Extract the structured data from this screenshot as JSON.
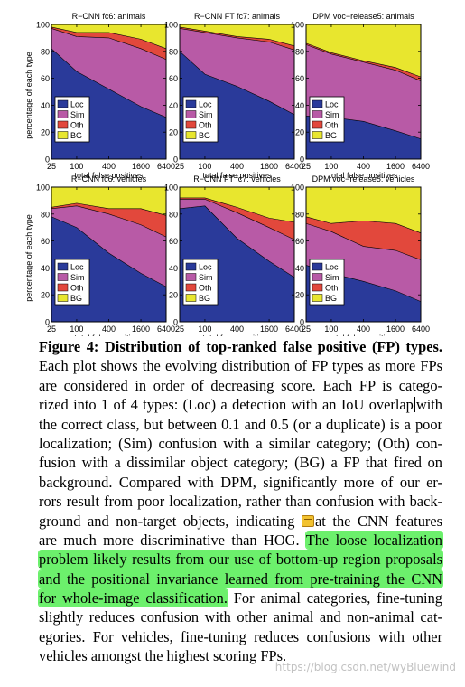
{
  "figure": {
    "colors": {
      "Loc": "#2a3a9a",
      "Sim": "#b85aa6",
      "Oth": "#e2483c",
      "BG": "#e8e62e"
    },
    "legend": [
      "Loc",
      "Sim",
      "Oth",
      "BG"
    ],
    "ylabel": "percentage of each type",
    "xlabel": "total false positives",
    "x_ticks": [
      "25",
      "100",
      "400",
      "1600",
      "6400"
    ],
    "y_ticks": [
      "0",
      "20",
      "40",
      "60",
      "80",
      "100"
    ]
  },
  "chart_data": [
    {
      "type": "area",
      "title": "R−CNN fc6: animals",
      "x": [
        25,
        100,
        400,
        1600,
        6400
      ],
      "ylim": [
        0,
        100
      ],
      "series": [
        {
          "name": "Loc",
          "values": [
            82,
            65,
            52,
            39,
            31
          ]
        },
        {
          "name": "Sim",
          "values": [
            15,
            26,
            38,
            43,
            43
          ]
        },
        {
          "name": "Oth",
          "values": [
            1,
            3,
            4,
            7,
            8
          ]
        },
        {
          "name": "BG",
          "values": [
            2,
            6,
            6,
            11,
            18
          ]
        }
      ]
    },
    {
      "type": "area",
      "title": "R−CNN FT fc7: animals",
      "x": [
        25,
        100,
        400,
        1600,
        6400
      ],
      "ylim": [
        0,
        100
      ],
      "series": [
        {
          "name": "Loc",
          "values": [
            80,
            63,
            54,
            43,
            33
          ]
        },
        {
          "name": "Sim",
          "values": [
            17,
            31,
            36,
            44,
            48
          ]
        },
        {
          "name": "Oth",
          "values": [
            1,
            1,
            1,
            2,
            3
          ]
        },
        {
          "name": "BG",
          "values": [
            2,
            5,
            9,
            11,
            16
          ]
        }
      ]
    },
    {
      "type": "area",
      "title": "DPM voc−release5: animals",
      "x": [
        25,
        100,
        400,
        1600,
        6400
      ],
      "ylim": [
        0,
        100
      ],
      "series": [
        {
          "name": "Loc",
          "values": [
            32,
            31,
            28,
            21,
            15
          ]
        },
        {
          "name": "Sim",
          "values": [
            53,
            47,
            44,
            45,
            43
          ]
        },
        {
          "name": "Oth",
          "values": [
            1,
            1,
            1,
            2,
            3
          ]
        },
        {
          "name": "BG",
          "values": [
            14,
            21,
            27,
            32,
            39
          ]
        }
      ]
    },
    {
      "type": "area",
      "title": "R−CNN fc6: vehicles",
      "x": [
        25,
        100,
        400,
        1600,
        6400
      ],
      "ylim": [
        0,
        100
      ],
      "series": [
        {
          "name": "Loc",
          "values": [
            78,
            70,
            51,
            36,
            26
          ]
        },
        {
          "name": "Sim",
          "values": [
            6,
            16,
            29,
            36,
            37
          ]
        },
        {
          "name": "Oth",
          "values": [
            1,
            2,
            4,
            12,
            16
          ]
        },
        {
          "name": "BG",
          "values": [
            15,
            12,
            16,
            16,
            21
          ]
        }
      ]
    },
    {
      "type": "area",
      "title": "R−CNN FT fc7: vehicles",
      "x": [
        25,
        100,
        400,
        1600,
        6400
      ],
      "ylim": [
        0,
        100
      ],
      "series": [
        {
          "name": "Loc",
          "values": [
            84,
            86,
            62,
            45,
            33
          ]
        },
        {
          "name": "Sim",
          "values": [
            7,
            5,
            19,
            25,
            28
          ]
        },
        {
          "name": "Oth",
          "values": [
            1,
            1,
            4,
            7,
            13
          ]
        },
        {
          "name": "BG",
          "values": [
            8,
            8,
            15,
            23,
            26
          ]
        }
      ]
    },
    {
      "type": "area",
      "title": "DPM voc−release5: vehicles",
      "x": [
        25,
        100,
        400,
        1600,
        6400
      ],
      "ylim": [
        0,
        100
      ],
      "series": [
        {
          "name": "Loc",
          "values": [
            42,
            36,
            30,
            23,
            15
          ]
        },
        {
          "name": "Sim",
          "values": [
            31,
            31,
            26,
            30,
            31
          ]
        },
        {
          "name": "Oth",
          "values": [
            5,
            6,
            19,
            20,
            20
          ]
        },
        {
          "name": "BG",
          "values": [
            22,
            27,
            25,
            27,
            34
          ]
        }
      ]
    }
  ],
  "caption": {
    "label": "Figure 4: Distribution of top-ranked false positive (FP) types.",
    "lines": [
      "Each plot shows the evolving distribution of FP types as more FPs",
      "are considered in order of decreasing score.  Each FP is catego-",
      "rized into 1 of 4 types: (Loc) a detection with an IoU overlap",
      "with",
      "the correct class, but between 0.1 and 0.5 (or a duplicate) is a poor",
      "localization; (Sim) confusion with a similar category; (Oth) con-",
      "fusion with a dissimilar object category; (BG) a FP that fired on",
      "background.  Compared with DPM, significantly more of our er-",
      "rors result from poor localization, rather than confusion with back-",
      "ground and non-target objects, indicating",
      "at the CNN features",
      "are much more discriminative than HOG.",
      "The loose localization",
      "problem likely results from our use of bottom-up region proposals",
      "and the positional invariance learned from pre-training the CNN",
      "for whole-image classification.",
      "For animal categories, fine-tuning",
      "slightly reduces confusion with other animal and non-animal cat-",
      "egories.  For vehicles, fine-tuning reduces confusions with other",
      "vehicles amongst the highest scoring FPs."
    ]
  },
  "watermark": "https://blog.csdn.net/wyBluewind"
}
